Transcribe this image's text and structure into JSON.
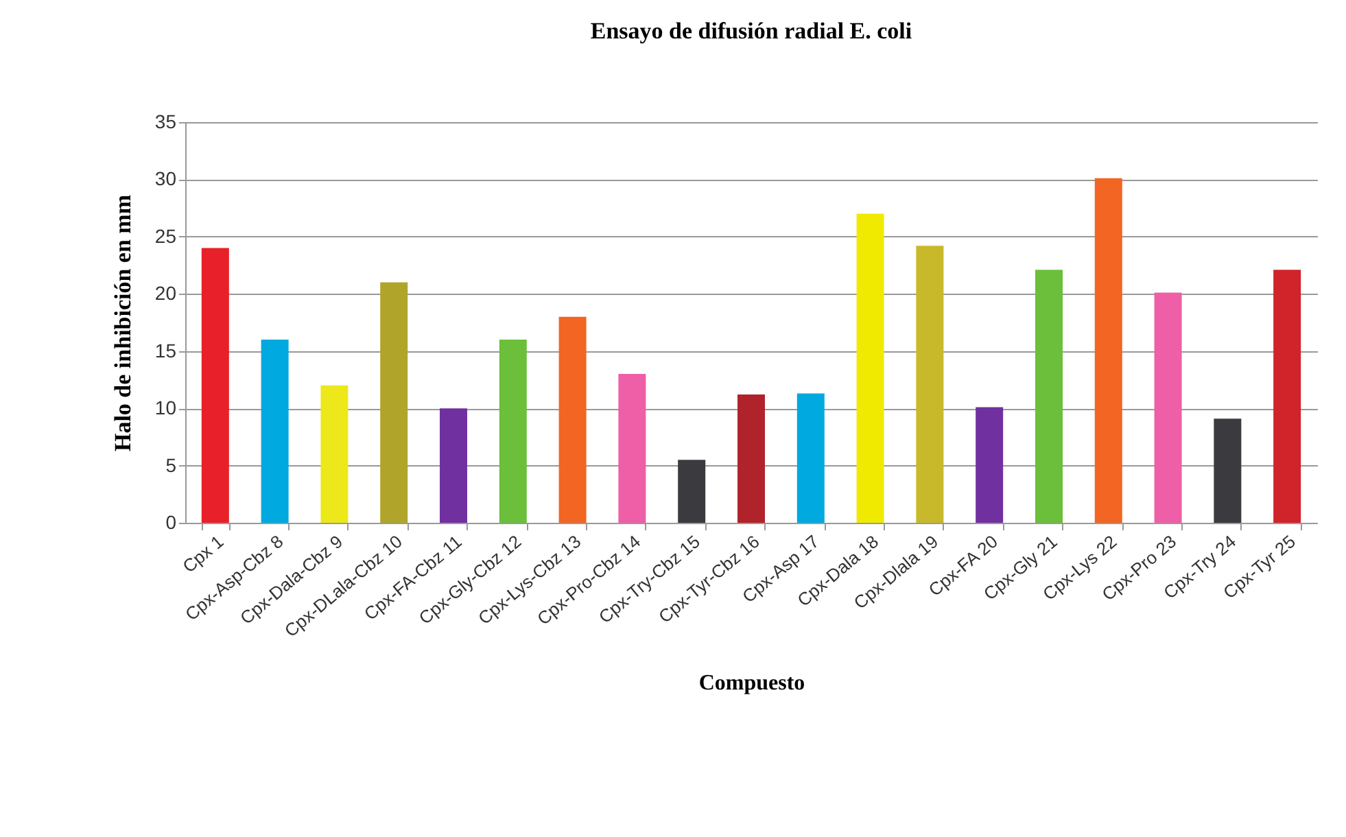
{
  "chart_data": {
    "type": "bar",
    "title": "Ensayo de difusión radial E. coli",
    "xlabel": "Compuesto",
    "ylabel": "Halo de inhibición en mm",
    "categories": [
      "Cpx  1",
      "Cpx-Asp-Cbz  8",
      "Cpx-Dala-Cbz  9",
      "Cpx-DLala-Cbz  10",
      "Cpx-FA-Cbz  11",
      "Cpx-Gly-Cbz  12",
      "Cpx-Lys-Cbz  13",
      "Cpx-Pro-Cbz  14",
      "Cpx-Try-Cbz  15",
      "Cpx-Tyr-Cbz  16",
      "Cpx-Asp  17",
      "Cpx-Dala  18",
      "Cpx-Dlala  19",
      "Cpx-FA  20",
      "Cpx-Gly  21",
      "Cpx-Lys  22",
      "Cpx-Pro  23",
      "Cpx-Try  24",
      "Cpx-Tyr  25"
    ],
    "values": [
      24,
      16,
      12,
      21,
      10,
      16,
      18,
      13,
      5.5,
      11.2,
      11.3,
      27,
      24.2,
      10.1,
      22.1,
      30.1,
      20.1,
      9.1,
      22.1
    ],
    "colors": [
      "#e8202a",
      "#00a9e0",
      "#ece81a",
      "#b0a52a",
      "#7030a0",
      "#6bbf3a",
      "#f26522",
      "#ee5fa7",
      "#3a3a3f",
      "#b0232a",
      "#00a9e0",
      "#f0ea00",
      "#c8b92a",
      "#7030a0",
      "#6bbf3a",
      "#f26522",
      "#ee5fa7",
      "#3a3a3f",
      "#d0232a"
    ],
    "ylim": [
      0,
      35
    ],
    "yticks": [
      0,
      5,
      10,
      15,
      20,
      25,
      30,
      35
    ],
    "grid": "y",
    "legend": false
  }
}
